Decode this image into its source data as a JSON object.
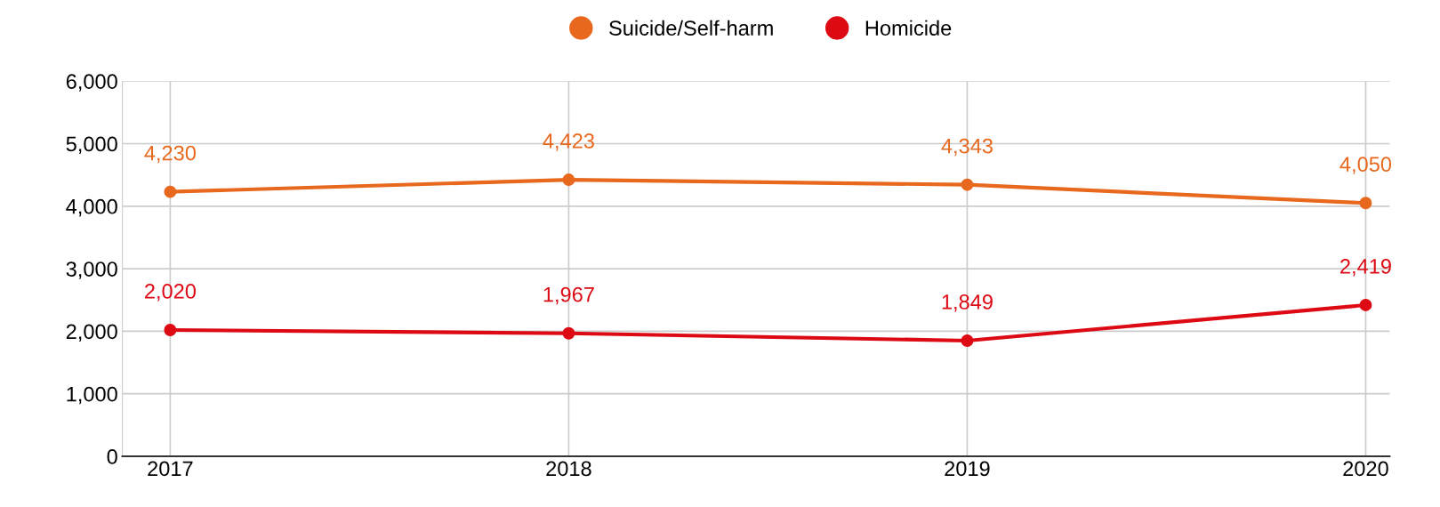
{
  "chart_data": {
    "type": "line",
    "categories": [
      "2017",
      "2018",
      "2019",
      "2020"
    ],
    "series": [
      {
        "name": "Suicide/Self-harm",
        "color": "#e8681e",
        "values": [
          4230,
          4423,
          4343,
          4050
        ],
        "value_labels": [
          "4,230",
          "4,423",
          "4,343",
          "4,050"
        ]
      },
      {
        "name": "Homicide",
        "color": "#dd0a14",
        "values": [
          2020,
          1967,
          1849,
          2419
        ],
        "value_labels": [
          "2,020",
          "1,967",
          "1,849",
          "2,419"
        ]
      }
    ],
    "ylim": [
      0,
      6000
    ],
    "yticks": [
      {
        "value": 0,
        "label": "0"
      },
      {
        "value": 1000,
        "label": "1,000"
      },
      {
        "value": 2000,
        "label": "2,000"
      },
      {
        "value": 3000,
        "label": "3,000"
      },
      {
        "value": 4000,
        "label": "4,000"
      },
      {
        "value": 5000,
        "label": "5,000"
      },
      {
        "value": 6000,
        "label": "6,000"
      }
    ],
    "grid": true,
    "legend": "top",
    "marker": "circle",
    "line_style": "solid"
  }
}
